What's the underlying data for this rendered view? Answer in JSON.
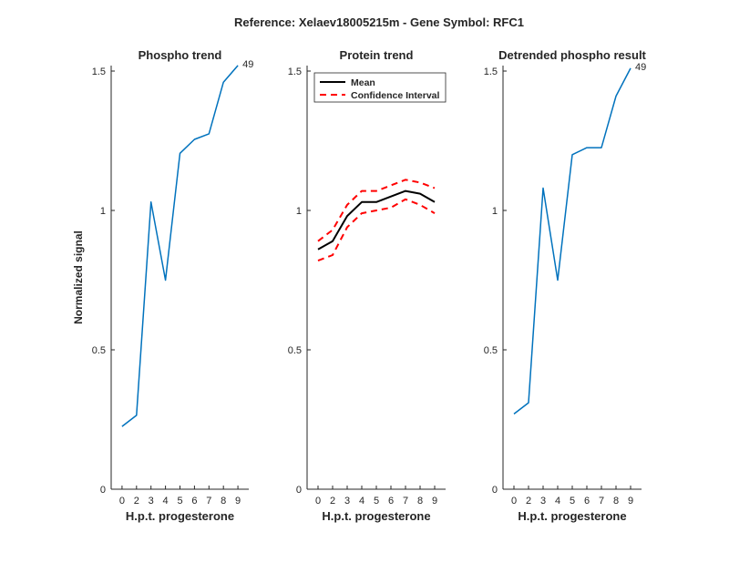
{
  "figure": {
    "title": "Reference:  Xelaev18005215m - Gene Symbol:  RFC1"
  },
  "chart_data": [
    {
      "type": "line",
      "title": "Phospho trend",
      "xlabel": "H.p.t. progesterone",
      "ylabel": "Normalized signal",
      "x_ticks": [
        "0",
        "2",
        "3",
        "4",
        "5",
        "6",
        "7",
        "8",
        "9"
      ],
      "y_ticks": [
        "0",
        "0.5",
        "1",
        "1.5"
      ],
      "ylim": [
        0,
        1.5
      ],
      "annotation": "49",
      "series": [
        {
          "color": "#0072bd",
          "dash": "",
          "width": 1.5,
          "values": [
            0.225,
            0.265,
            1.03,
            0.75,
            1.205,
            1.255,
            1.275,
            1.46,
            1.52
          ]
        }
      ]
    },
    {
      "type": "line",
      "title": "Protein trend",
      "xlabel": "H.p.t. progesterone",
      "ylabel": "",
      "x_ticks": [
        "0",
        "2",
        "3",
        "4",
        "5",
        "6",
        "7",
        "8",
        "9"
      ],
      "y_ticks": [
        "0",
        "0.5",
        "1",
        "1.5"
      ],
      "ylim": [
        0,
        1.5
      ],
      "legend": {
        "position": "top-left",
        "items": [
          "Mean",
          "Confidence Interval"
        ]
      },
      "series": [
        {
          "name": "Mean",
          "color": "#000000",
          "dash": "",
          "width": 2,
          "values": [
            0.86,
            0.89,
            0.98,
            1.03,
            1.03,
            1.05,
            1.07,
            1.06,
            1.03
          ]
        },
        {
          "name": "Confidence Interval",
          "color": "#ff0000",
          "dash": "7,5",
          "width": 2,
          "values": [
            0.89,
            0.93,
            1.02,
            1.07,
            1.07,
            1.09,
            1.11,
            1.1,
            1.08
          ]
        },
        {
          "color": "#ff0000",
          "dash": "7,5",
          "width": 2,
          "values": [
            0.82,
            0.84,
            0.94,
            0.99,
            1.0,
            1.01,
            1.04,
            1.02,
            0.99
          ]
        }
      ]
    },
    {
      "type": "line",
      "title": "Detrended phospho result",
      "xlabel": "H.p.t. progesterone",
      "ylabel": "",
      "x_ticks": [
        "0",
        "2",
        "3",
        "4",
        "5",
        "6",
        "7",
        "8",
        "9"
      ],
      "y_ticks": [
        "0",
        "0.5",
        "1",
        "1.5"
      ],
      "ylim": [
        0,
        1.5
      ],
      "annotation": "49",
      "series": [
        {
          "color": "#0072bd",
          "dash": "",
          "width": 1.5,
          "values": [
            0.27,
            0.31,
            1.08,
            0.75,
            1.2,
            1.225,
            1.225,
            1.41,
            1.51
          ]
        }
      ]
    }
  ]
}
